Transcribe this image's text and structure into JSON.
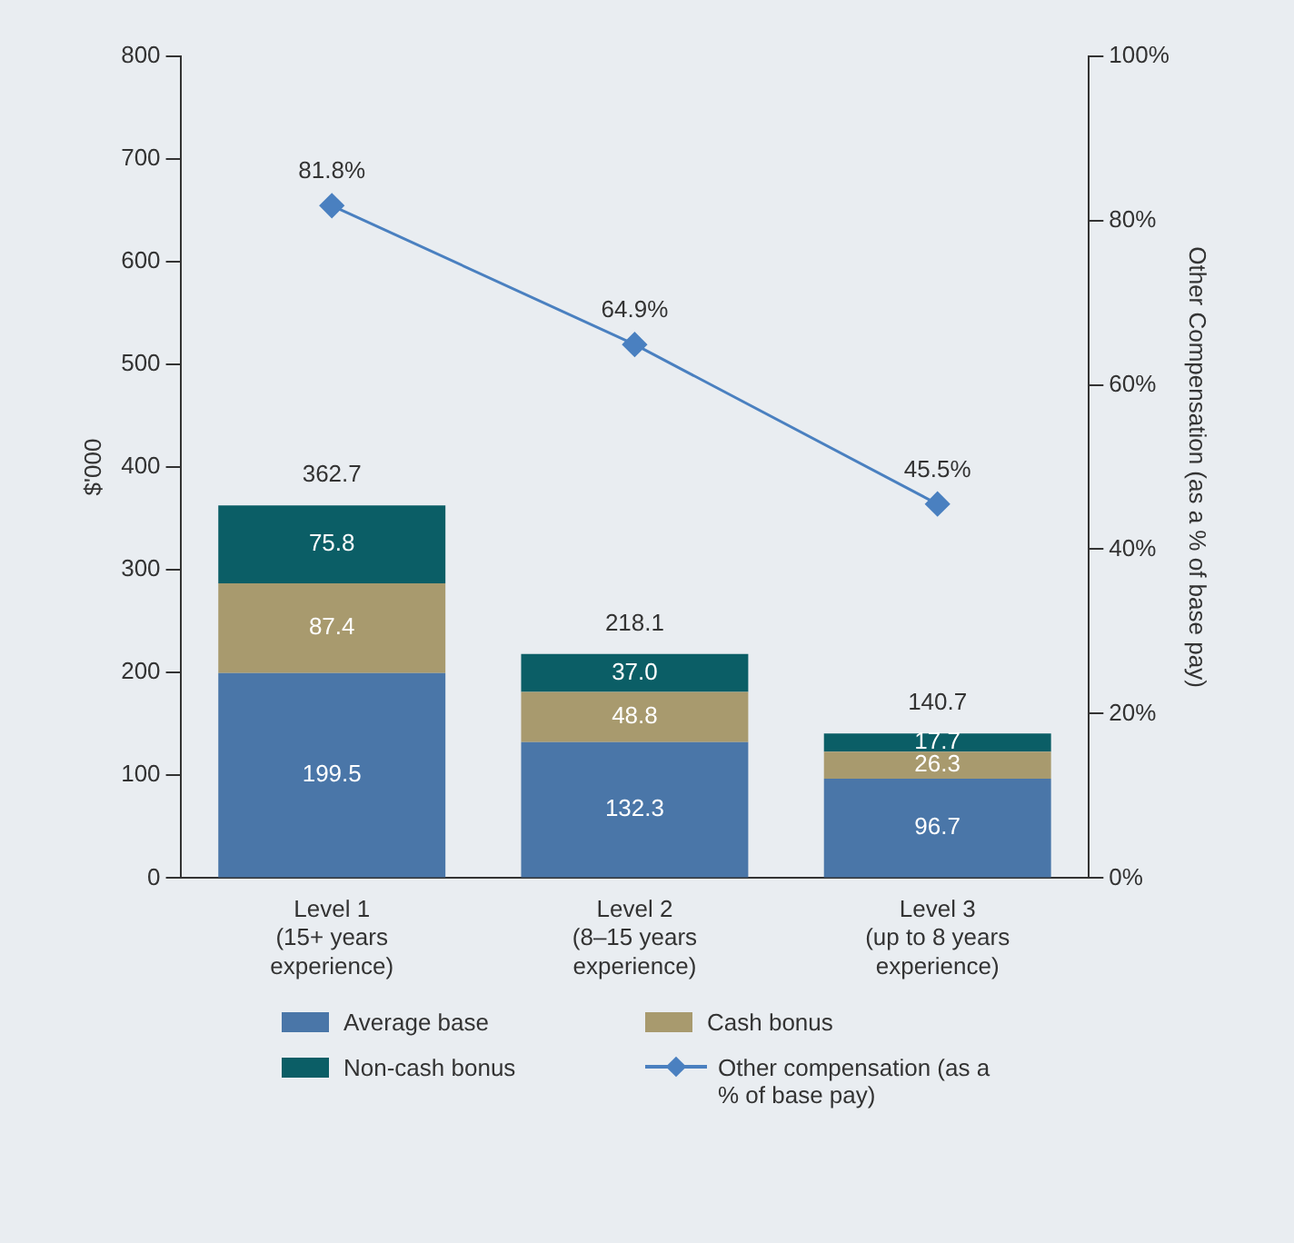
{
  "chart_data": {
    "type": "bar",
    "stacked": true,
    "ylabel": "$'000",
    "y2label": "Other Compensation (as a % of base pay)",
    "categories": [
      "Level 1\n(15+ years\nexperience)",
      "Level 2\n(8–15 years\nexperience)",
      "Level 3\n(up to 8 years\nexperience)"
    ],
    "series": [
      {
        "name": "Average base",
        "color": "#4a76a8",
        "values": [
          199.5,
          132.3,
          96.7
        ],
        "value_labels": [
          "199.5",
          "132.3",
          "96.7"
        ]
      },
      {
        "name": "Cash bonus",
        "color": "#a89a6e",
        "values": [
          87.4,
          48.8,
          26.3
        ],
        "value_labels": [
          "87.4",
          "48.8",
          "26.3"
        ]
      },
      {
        "name": "Non-cash bonus",
        "color": "#0b5e66",
        "values": [
          75.8,
          37.0,
          17.7
        ],
        "value_labels": [
          "75.8",
          "37.0",
          "17.7"
        ]
      },
      {
        "name": "Other compensation (as a % of base pay)",
        "type": "line",
        "axis": "y2",
        "color": "#4a80c0",
        "marker": "diamond",
        "values": [
          81.8,
          64.9,
          45.5
        ],
        "value_labels": [
          "81.8%",
          "64.9%",
          "45.5%"
        ]
      }
    ],
    "totals": [
      "362.7",
      "218.1",
      "140.7"
    ],
    "ylim": [
      0,
      800
    ],
    "yticks": [
      0,
      100,
      200,
      300,
      400,
      500,
      600,
      700,
      800
    ],
    "y2lim": [
      0,
      100
    ],
    "y2ticks": [
      {
        "value": 0,
        "label": "0%"
      },
      {
        "value": 20,
        "label": "20%"
      },
      {
        "value": 40,
        "label": "40%"
      },
      {
        "value": 60,
        "label": "60%"
      },
      {
        "value": 80,
        "label": "80%"
      },
      {
        "value": 100,
        "label": "100%"
      }
    ],
    "grid": false,
    "legend": "bottom"
  }
}
